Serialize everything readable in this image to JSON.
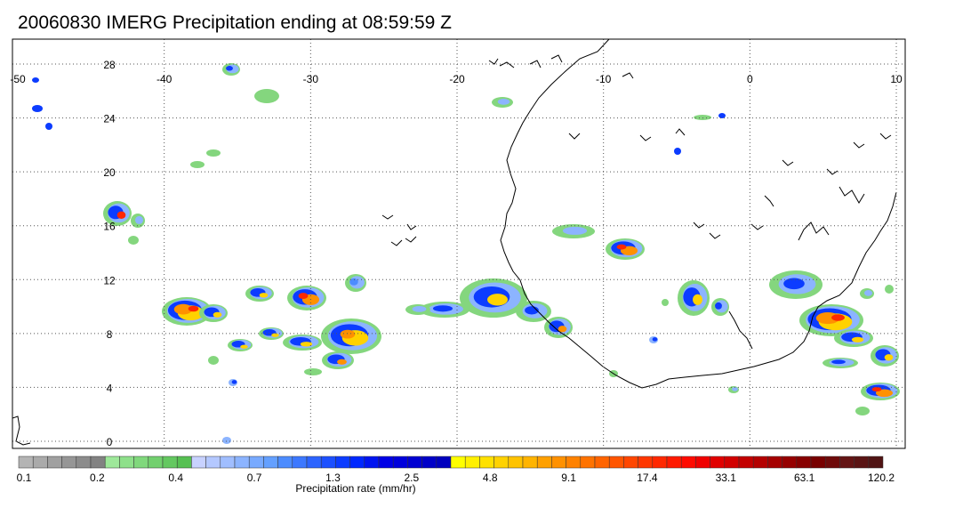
{
  "title": "20060830 IMERG Precipitation ending at 08:59:59 Z",
  "map": {
    "lon_range": [
      -50,
      10
    ],
    "lat_range": [
      -0.5,
      29
    ],
    "grid": "dotted",
    "lon_labels": [
      "-50",
      "-40",
      "-30",
      "-20",
      "-10",
      "0",
      "10"
    ],
    "lat_labels": [
      "28",
      "24",
      "20",
      "16",
      "12",
      "8",
      "4",
      "0"
    ]
  },
  "colorbar": {
    "label": "Precipitation rate (mm/hr)",
    "tick_labels": [
      "0.1",
      "0.2",
      "0.4",
      "0.7",
      "1.3",
      "2.5",
      "4.8",
      "9.1",
      "17.4",
      "33.1",
      "63.1",
      "120.2"
    ],
    "colors": [
      "#b4b4b4",
      "#aaaaaa",
      "#a0a0a0",
      "#969696",
      "#8c8c8c",
      "#828282",
      "#9ee89a",
      "#8ee08a",
      "#80d87c",
      "#72d06e",
      "#64c860",
      "#56c052",
      "#c8d2ff",
      "#b4c8ff",
      "#a0beff",
      "#8cb4ff",
      "#78aaff",
      "#64a0ff",
      "#4c8cff",
      "#3c78ff",
      "#2c64ff",
      "#1c50ff",
      "#0c3cff",
      "#0028ff",
      "#0014f0",
      "#0000e6",
      "#0000dc",
      "#0000d2",
      "#0000c8",
      "#0000be",
      "#ffff00",
      "#fff000",
      "#ffe100",
      "#ffd200",
      "#ffc300",
      "#ffb400",
      "#ffa000",
      "#ff9100",
      "#ff8200",
      "#ff7300",
      "#ff6400",
      "#ff5500",
      "#ff4600",
      "#ff3700",
      "#ff2800",
      "#ff1900",
      "#ff0a00",
      "#f00000",
      "#e10000",
      "#d20000",
      "#c30000",
      "#b40000",
      "#a50000",
      "#960000",
      "#870000",
      "#780000",
      "#6e0a0a",
      "#641414",
      "#5a1414",
      "#501414"
    ]
  }
}
